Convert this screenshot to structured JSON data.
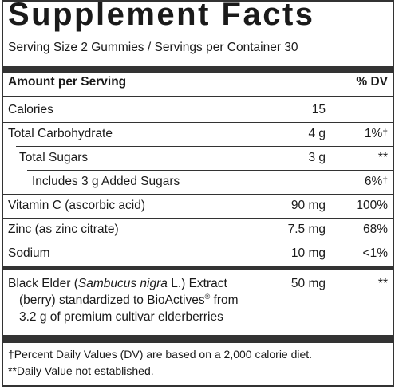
{
  "title": "Supplement Facts",
  "serving_info": "Serving Size 2 Gummies / Servings per Container 30",
  "header": {
    "amount_label": "Amount per Serving",
    "dv_label": "% DV"
  },
  "rows": [
    {
      "name": "Calories",
      "amount": "15",
      "dv": ""
    },
    {
      "name": "Total Carbohydrate",
      "amount": "4 g",
      "dv": "1%",
      "dv_mark": "†"
    },
    {
      "name": "Total Sugars",
      "amount": "3 g",
      "dv": "**"
    },
    {
      "name": "Includes 3 g Added Sugars",
      "amount": "",
      "dv": "6%",
      "dv_mark": "†"
    },
    {
      "name": "Vitamin C (ascorbic acid)",
      "amount": "90 mg",
      "dv": "100%"
    },
    {
      "name": "Zinc (as zinc citrate)",
      "amount": "7.5 mg",
      "dv": "68%"
    },
    {
      "name": "Sodium",
      "amount": "10 mg",
      "dv": "<1%"
    }
  ],
  "elder": {
    "name_prefix": "Black Elder (",
    "name_italic": "Sambucus nigra",
    "name_suffix": " L.) Extract",
    "line2_prefix": "(berry) standardized to BioActives",
    "registered": "®",
    "line2_suffix": " from",
    "line3": "3.2 g of premium cultivar elderberries",
    "amount": "50 mg",
    "dv": "**"
  },
  "footnotes": [
    "†Percent Daily Values (DV) are based on a 2,000 calorie diet.",
    "**Daily Value not established."
  ]
}
